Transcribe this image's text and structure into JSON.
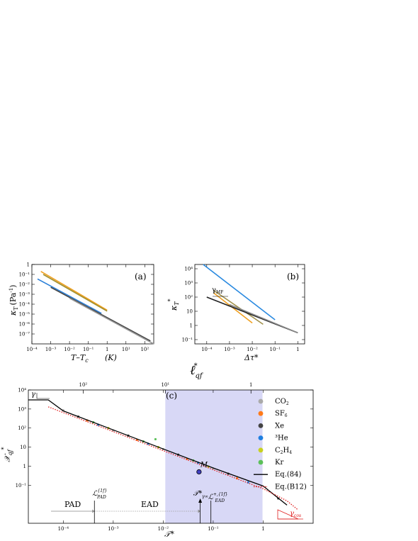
{
  "chart_data": [
    {
      "type": "line",
      "panel_label": "(a)",
      "xlabel": "T–T",
      "xlabel_sub": "c",
      "xunit": "(K)",
      "ylabel": "κ",
      "ylabel_sub": "T",
      "yunit": "(Pa",
      "yunit_sup": "-1",
      "yunit_close": ")",
      "xscale": "log",
      "yscale": "log",
      "xlim": [
        0.0001,
        300
      ],
      "ylim": [
        1e-08,
        1
      ],
      "xticks": [
        "10⁻⁴",
        "10⁻³",
        "10⁻²",
        "10⁻¹",
        "1",
        "10¹",
        "10²"
      ],
      "yticks": [
        "1",
        "10⁻¹",
        "10⁻²",
        "10⁻³",
        "10⁻⁴",
        "10⁻⁵",
        "10⁻⁶",
        "10⁻⁷"
      ],
      "series": [
        {
          "color": "#f0a020",
          "x": [
            0.0003,
            1
          ],
          "y": [
            0.2,
            2.5e-05
          ]
        },
        {
          "color": "#a09030",
          "x": [
            0.0004,
            1
          ],
          "y": [
            0.1,
            2e-05
          ]
        },
        {
          "color": "#2a7fd8",
          "x": [
            0.0002,
            0.5
          ],
          "y": [
            0.035,
            1.2e-05
          ]
        },
        {
          "color": "#444444",
          "x": [
            0.001,
            200
          ],
          "y": [
            0.005,
            2e-08
          ]
        },
        {
          "color": "#999999",
          "x": [
            0.01,
            300
          ],
          "y": [
            0.0004,
            1e-08
          ]
        }
      ]
    },
    {
      "type": "line",
      "panel_label": "(b)",
      "xlabel": "Δτ*",
      "ylabel": "κ",
      "ylabel_sub": "T",
      "ylabel_sup": "*",
      "annotation": "γ",
      "annotation_sub": "MF",
      "xscale": "log",
      "yscale": "log",
      "xlim": [
        3e-05,
        2
      ],
      "ylim": [
        0.05,
        20000
      ],
      "xticks": [
        "10⁻⁴",
        "10⁻³",
        "10⁻²",
        "10⁻¹",
        "1"
      ],
      "yticks": [
        "10⁴",
        "10³",
        "10²",
        "10",
        "1",
        "10⁻¹"
      ],
      "series": [
        {
          "color": "#2a8ae0",
          "x": [
            7e-05,
            0.1
          ],
          "y": [
            20000,
            2.5
          ]
        },
        {
          "color": "#a0904a",
          "x": [
            0.0002,
            0.03
          ],
          "y": [
            300,
            1.2
          ]
        },
        {
          "color": "#f0a020",
          "x": [
            0.0002,
            0.01
          ],
          "y": [
            200,
            1.5
          ]
        },
        {
          "color": "#222222",
          "x": [
            0.0001,
            1
          ],
          "y": [
            100,
            0.3
          ]
        },
        {
          "color": "#888888",
          "x": [
            0.001,
            1
          ],
          "y": [
            30,
            0.3
          ]
        }
      ]
    },
    {
      "type": "line",
      "panel_label": "(c)",
      "xlabel": "𝒯*",
      "ylabel": "𝒳",
      "ylabel_sub": "qf",
      "ylabel_sup": "*",
      "top_xlabel": "ℓ",
      "top_xlabel_sub": "qf",
      "top_xlabel_sup": "*",
      "xscale": "log",
      "yscale": "log",
      "xlim": [
        2e-05,
        10
      ],
      "ylim": [
        0.01,
        100000
      ],
      "xticks": [
        "10⁻⁴",
        "10⁻³",
        "10⁻²",
        "10⁻¹",
        "1"
      ],
      "yticks": [
        "10⁴",
        "10³",
        "10²",
        "10",
        "1",
        "10⁻¹"
      ],
      "top_xticks": [
        "10²",
        "10¹",
        "1"
      ],
      "top_xtick_pos": [
        0.00025,
        0.011,
        0.57
      ],
      "shaded_region": [
        0.011,
        0.97
      ],
      "shade_color": "#d8d8f6",
      "legend": [
        {
          "label": "CO",
          "sub": "2",
          "color": "#aaaaaa",
          "kind": "dot"
        },
        {
          "label": "SF",
          "sub": "6",
          "color": "#ff7a1a",
          "kind": "dot"
        },
        {
          "label": "Xe",
          "color": "#444444",
          "kind": "dot"
        },
        {
          "label": "³He",
          "color": "#1f7fe0",
          "kind": "dot"
        },
        {
          "label": "C",
          "sub": "2",
          "label2": "H",
          "sub2": "4",
          "color": "#c8d020",
          "kind": "dot"
        },
        {
          "label": "Kr",
          "color": "#5cc05a",
          "kind": "dot"
        },
        {
          "label": "Eq.(84)",
          "color": "#000000",
          "kind": "solid"
        },
        {
          "label": "Eq.(B12)",
          "color": "#e02020",
          "kind": "dotted"
        }
      ],
      "annotations": {
        "gamma": "γ",
        "gamma_cos": "γ",
        "gamma_cos_sub": "cos",
        "point_label": "M",
        "pad": "PAD",
        "ead": "EAD",
        "l_pad": "ℒ",
        "l_pad_sup": "{1f}",
        "l_pad_sub": "PAD",
        "t_gamma": "𝒯*",
        "t_gamma_sub": "γ∞",
        "l_ead": "ℒ",
        "l_ead_sup": "+,{1f}",
        "l_ead_sub": "EAD"
      },
      "markers_x": {
        "l_pad": 0.00042,
        "t_gamma": 0.055,
        "l_ead": 0.09
      },
      "point_M": {
        "x": 0.052,
        "y": 5
      },
      "eq84": {
        "x": [
          2e-05,
          5e-05,
          0.0001,
          0.001,
          0.01,
          0.1,
          1,
          3
        ],
        "y": [
          30000,
          30000,
          8000,
          800,
          80,
          8,
          0.9,
          0.09
        ]
      },
      "eqB12": {
        "x": [
          5e-05,
          0.0001,
          0.001,
          0.01,
          0.1,
          1,
          3,
          5
        ],
        "y": [
          13000,
          6500,
          650,
          65,
          6.5,
          0.65,
          0.15,
          0.05
        ]
      },
      "data_series": [
        {
          "name": "CO2",
          "color": "#aaaaaa",
          "x": [
            0.0001,
            0.001,
            0.01,
            0.1
          ],
          "y": [
            8500,
            750,
            78,
            7.5
          ]
        },
        {
          "name": "SF6",
          "color": "#ff7a1a",
          "x": [
            0.0003,
            0.003,
            0.03,
            0.3
          ],
          "y": [
            2500,
            240,
            24,
            2.3
          ]
        },
        {
          "name": "Xe",
          "color": "#444444",
          "x": [
            0.0002,
            0.002,
            0.02,
            0.2,
            2
          ],
          "y": [
            4000,
            400,
            40,
            4,
            0.2
          ]
        },
        {
          "name": "3He",
          "color": "#1f7fe0",
          "x": [
            0.0005,
            0.005,
            0.05,
            0.5
          ],
          "y": [
            1500,
            150,
            15,
            1.4
          ]
        },
        {
          "name": "C2H4",
          "color": "#c8d020",
          "x": [
            0.0008,
            0.008,
            0.08
          ],
          "y": [
            1000,
            100,
            9.5
          ]
        },
        {
          "name": "Kr",
          "color": "#5cc05a",
          "x": [
            0.0004,
            0.004,
            0.007,
            0.04
          ],
          "y": [
            2000,
            200,
            260,
            20
          ]
        }
      ]
    }
  ]
}
